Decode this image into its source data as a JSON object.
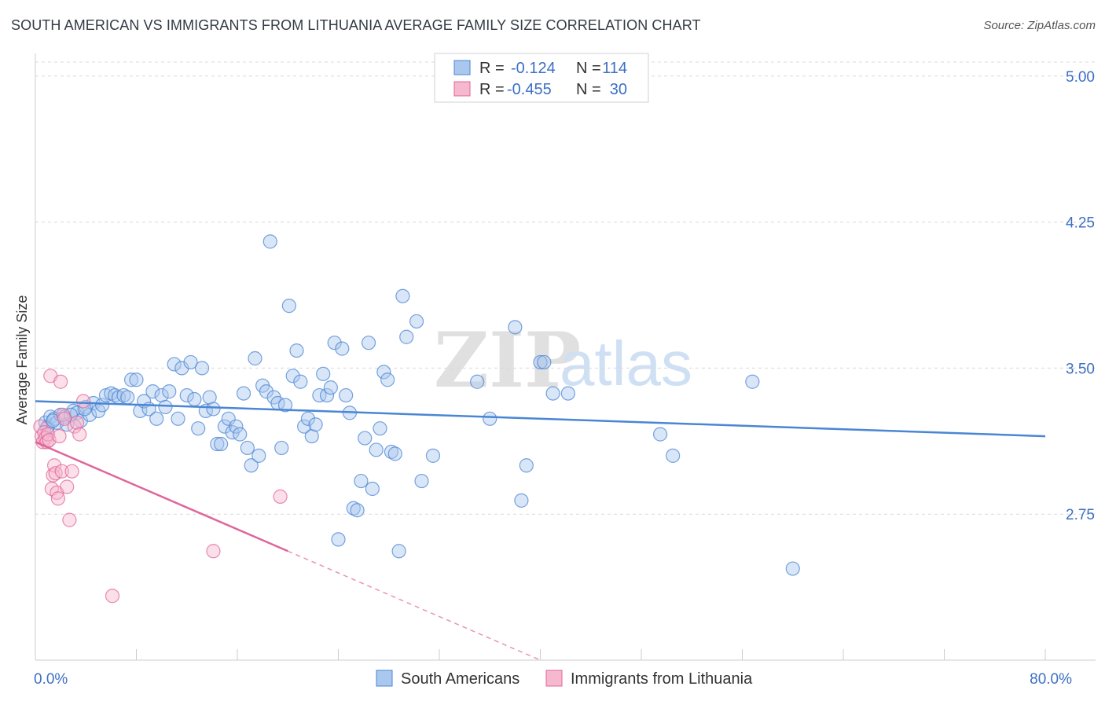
{
  "title": "SOUTH AMERICAN VS IMMIGRANTS FROM LITHUANIA AVERAGE FAMILY SIZE CORRELATION CHART",
  "source": "Source: ZipAtlas.com",
  "watermark": {
    "zip": "ZIP",
    "atlas": "atlas"
  },
  "colors": {
    "blue": "#4a86d4",
    "blue_fill": "#aac8ee",
    "pink": "#e0659a",
    "pink_fill": "#f6b8cf",
    "grid": "#d9d9d9",
    "tick_label": "#3d6fc4"
  },
  "legend": {
    "rows": [
      {
        "r_label": "R =",
        "r_value": "-0.124",
        "n_label": "N =",
        "n_value": "114",
        "color": "blue"
      },
      {
        "r_label": "R =",
        "r_value": "-0.455",
        "n_label": "N =",
        "n_value": "30",
        "color": "pink"
      }
    ]
  },
  "chart_data": {
    "type": "scatter",
    "xlabel": "",
    "ylabel": "Average Family Size",
    "xlim": [
      0,
      80
    ],
    "ylim": [
      2.0,
      5.1
    ],
    "x_tick_labels": [
      {
        "value": 0,
        "label": "0.0%"
      },
      {
        "value": 80,
        "label": "80.0%"
      }
    ],
    "y_ticks": [
      {
        "value": 2.75,
        "label": "2.75"
      },
      {
        "value": 3.5,
        "label": "3.50"
      },
      {
        "value": 4.25,
        "label": "4.25"
      },
      {
        "value": 5.0,
        "label": "5.00"
      }
    ],
    "grid": "horizontal dashed",
    "legend_position": "top-center",
    "series": [
      {
        "name": "South Americans",
        "color": "blue",
        "trend": {
          "x": [
            0,
            80
          ],
          "y": [
            3.33,
            3.15
          ]
        },
        "points": [
          [
            0.8,
            3.22
          ],
          [
            1.0,
            3.2
          ],
          [
            1.2,
            3.25
          ],
          [
            1.5,
            3.24
          ],
          [
            1.7,
            3.22
          ],
          [
            2.0,
            3.26
          ],
          [
            2.3,
            3.25
          ],
          [
            2.5,
            3.21
          ],
          [
            3.0,
            3.28
          ],
          [
            3.3,
            3.27
          ],
          [
            3.6,
            3.23
          ],
          [
            4.0,
            3.3
          ],
          [
            4.3,
            3.26
          ],
          [
            4.6,
            3.32
          ],
          [
            5.0,
            3.28
          ],
          [
            5.3,
            3.31
          ],
          [
            5.6,
            3.36
          ],
          [
            6.0,
            3.37
          ],
          [
            6.3,
            3.36
          ],
          [
            6.6,
            3.35
          ],
          [
            7.0,
            3.36
          ],
          [
            7.3,
            3.35
          ],
          [
            7.6,
            3.44
          ],
          [
            8.0,
            3.44
          ],
          [
            8.3,
            3.28
          ],
          [
            8.6,
            3.33
          ],
          [
            9.0,
            3.29
          ],
          [
            9.3,
            3.38
          ],
          [
            9.6,
            3.24
          ],
          [
            10.0,
            3.36
          ],
          [
            10.3,
            3.3
          ],
          [
            10.6,
            3.38
          ],
          [
            11.0,
            3.52
          ],
          [
            11.3,
            3.24
          ],
          [
            11.6,
            3.5
          ],
          [
            12.0,
            3.36
          ],
          [
            12.3,
            3.53
          ],
          [
            12.6,
            3.34
          ],
          [
            12.9,
            3.19
          ],
          [
            13.2,
            3.5
          ],
          [
            13.5,
            3.28
          ],
          [
            13.8,
            3.35
          ],
          [
            14.1,
            3.29
          ],
          [
            14.4,
            3.11
          ],
          [
            14.7,
            3.11
          ],
          [
            15.0,
            3.2
          ],
          [
            15.3,
            3.24
          ],
          [
            15.6,
            3.17
          ],
          [
            15.9,
            3.2
          ],
          [
            16.2,
            3.16
          ],
          [
            16.5,
            3.37
          ],
          [
            16.8,
            3.09
          ],
          [
            17.1,
            3.0
          ],
          [
            17.4,
            3.55
          ],
          [
            17.7,
            3.05
          ],
          [
            18.0,
            3.41
          ],
          [
            18.3,
            3.38
          ],
          [
            18.6,
            4.15
          ],
          [
            18.9,
            3.35
          ],
          [
            19.2,
            3.32
          ],
          [
            19.5,
            3.09
          ],
          [
            19.8,
            3.31
          ],
          [
            20.1,
            3.82
          ],
          [
            20.4,
            3.46
          ],
          [
            20.7,
            3.59
          ],
          [
            21.0,
            3.43
          ],
          [
            21.3,
            3.2
          ],
          [
            21.6,
            3.24
          ],
          [
            21.9,
            3.15
          ],
          [
            22.2,
            3.21
          ],
          [
            22.5,
            3.36
          ],
          [
            22.8,
            3.47
          ],
          [
            23.1,
            3.36
          ],
          [
            23.4,
            3.4
          ],
          [
            23.7,
            3.63
          ],
          [
            24.0,
            2.62
          ],
          [
            24.3,
            3.6
          ],
          [
            24.6,
            3.36
          ],
          [
            24.9,
            3.27
          ],
          [
            25.2,
            2.78
          ],
          [
            25.5,
            2.77
          ],
          [
            25.8,
            2.92
          ],
          [
            26.1,
            3.14
          ],
          [
            26.4,
            3.63
          ],
          [
            26.7,
            2.88
          ],
          [
            27.0,
            3.08
          ],
          [
            27.3,
            3.19
          ],
          [
            27.6,
            3.48
          ],
          [
            27.9,
            3.44
          ],
          [
            28.2,
            3.07
          ],
          [
            28.5,
            3.06
          ],
          [
            28.8,
            2.56
          ],
          [
            29.1,
            3.87
          ],
          [
            29.4,
            3.66
          ],
          [
            30.2,
            3.74
          ],
          [
            30.6,
            2.92
          ],
          [
            31.5,
            3.05
          ],
          [
            35.0,
            3.43
          ],
          [
            36.0,
            3.24
          ],
          [
            38.5,
            2.82
          ],
          [
            38.9,
            3.0
          ],
          [
            38.0,
            3.71
          ],
          [
            40.0,
            3.53
          ],
          [
            40.3,
            3.53
          ],
          [
            41.0,
            3.37
          ],
          [
            42.2,
            3.37
          ],
          [
            49.5,
            3.16
          ],
          [
            50.5,
            3.05
          ],
          [
            56.8,
            3.43
          ],
          [
            60.0,
            2.47
          ],
          [
            0.9,
            3.19
          ],
          [
            1.4,
            3.23
          ],
          [
            2.8,
            3.26
          ],
          [
            3.9,
            3.29
          ]
        ]
      },
      {
        "name": "Immigrants from Lithuania",
        "color": "pink",
        "trend": {
          "x": [
            0,
            20
          ],
          "y": [
            3.12,
            2.56
          ]
        },
        "trend_dashed": {
          "x": [
            20,
            40
          ],
          "y": [
            2.56,
            2.0
          ]
        },
        "points": [
          [
            0.4,
            3.2
          ],
          [
            0.5,
            3.15
          ],
          [
            0.6,
            3.12
          ],
          [
            0.7,
            3.17
          ],
          [
            0.8,
            3.14
          ],
          [
            0.9,
            3.12
          ],
          [
            1.0,
            3.16
          ],
          [
            1.1,
            3.13
          ],
          [
            1.2,
            3.46
          ],
          [
            1.3,
            2.88
          ],
          [
            1.4,
            2.95
          ],
          [
            1.5,
            3.0
          ],
          [
            1.6,
            2.96
          ],
          [
            1.7,
            2.86
          ],
          [
            1.8,
            2.83
          ],
          [
            1.9,
            3.15
          ],
          [
            2.0,
            3.43
          ],
          [
            2.1,
            2.97
          ],
          [
            2.2,
            3.26
          ],
          [
            2.3,
            3.24
          ],
          [
            2.5,
            2.89
          ],
          [
            2.7,
            2.72
          ],
          [
            2.9,
            2.97
          ],
          [
            3.1,
            3.2
          ],
          [
            3.3,
            3.22
          ],
          [
            3.5,
            3.16
          ],
          [
            3.8,
            3.33
          ],
          [
            6.1,
            2.33
          ],
          [
            14.1,
            2.56
          ],
          [
            19.4,
            2.84
          ]
        ]
      }
    ]
  }
}
